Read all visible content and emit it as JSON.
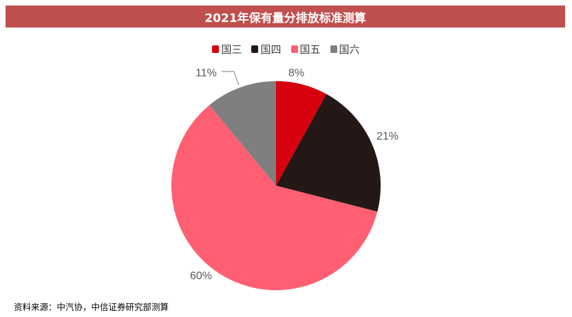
{
  "title": "2021年保有量分排放标准测算",
  "legend": [
    {
      "label": "国三",
      "color": "#d7000f"
    },
    {
      "label": "国四",
      "color": "#231815"
    },
    {
      "label": "国五",
      "color": "#ff5f73"
    },
    {
      "label": "国六",
      "color": "#7f7f7f"
    }
  ],
  "labels": {
    "guo3": "8%",
    "guo4": "21%",
    "guo5": "60%",
    "guo6": "11%"
  },
  "source": "资料来源：中汽协，中信证券研究部测算",
  "chart_data": {
    "type": "pie",
    "title": "2021年保有量分排放标准测算",
    "categories": [
      "国三",
      "国四",
      "国五",
      "国六"
    ],
    "values": [
      8,
      21,
      60,
      11
    ],
    "unit": "%",
    "colors": [
      "#d7000f",
      "#231815",
      "#ff5f73",
      "#7f7f7f"
    ],
    "legend_position": "top",
    "start_angle": "12 o'clock, clockwise"
  }
}
